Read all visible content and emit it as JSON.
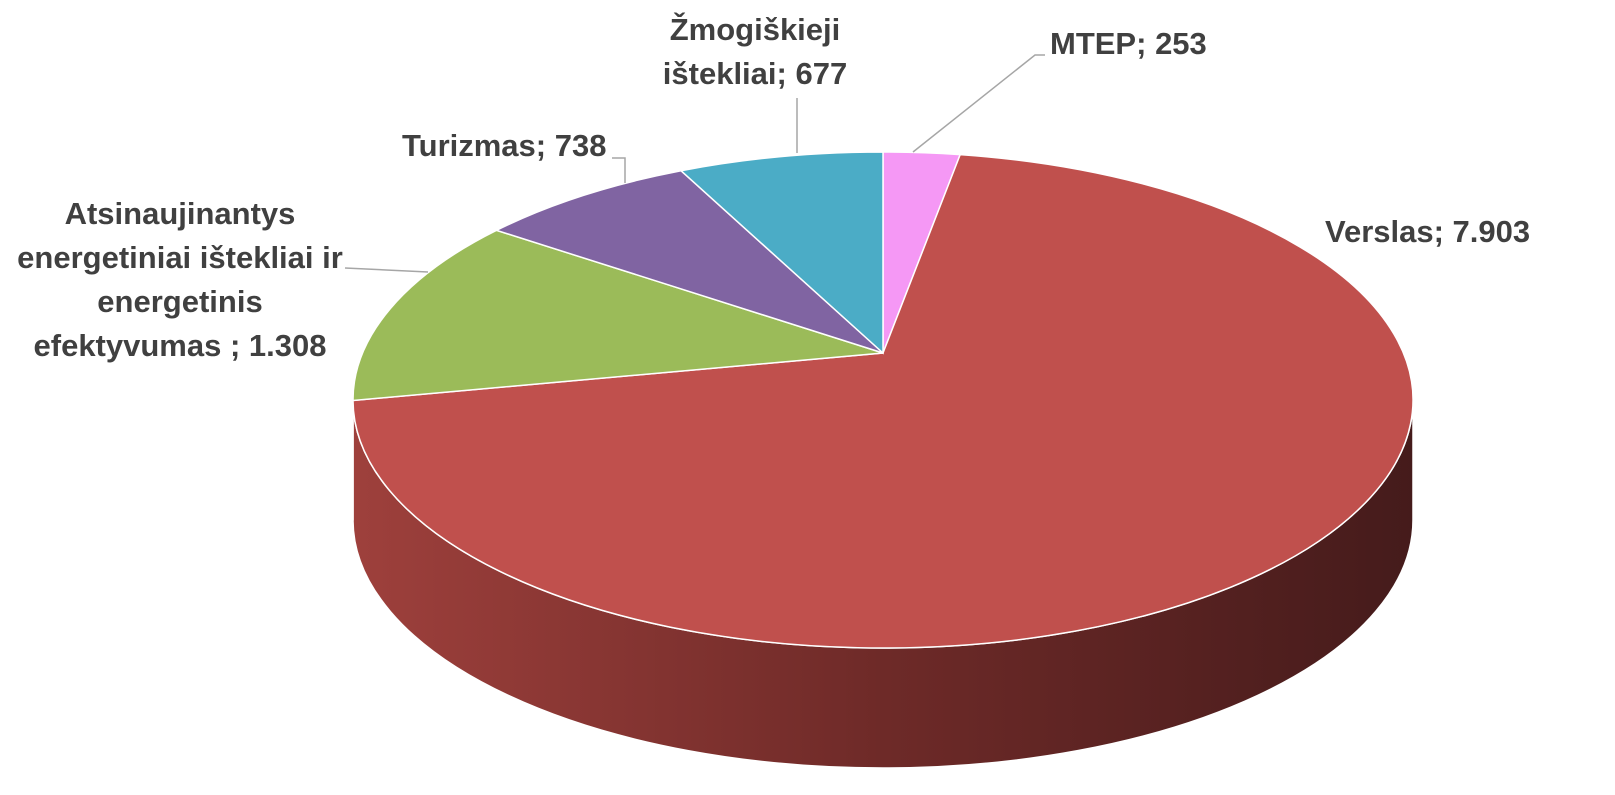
{
  "chart_data": {
    "type": "pie",
    "categories": [
      "MTEP",
      "Verslas",
      "Atsinaujinantys energetiniai ištekliai ir energetinis efektyvumas ",
      "Turizmas",
      "Žmogiškieji ištekliai"
    ],
    "values": [
      253,
      7903,
      1308,
      738,
      677
    ],
    "value_labels": [
      "253",
      "7.903",
      "1.308",
      "738",
      "677"
    ],
    "label_separator": "; ",
    "colors": [
      "#f598f5",
      "#c0504d",
      "#9bbb59",
      "#8064a2",
      "#4bacc6"
    ]
  }
}
